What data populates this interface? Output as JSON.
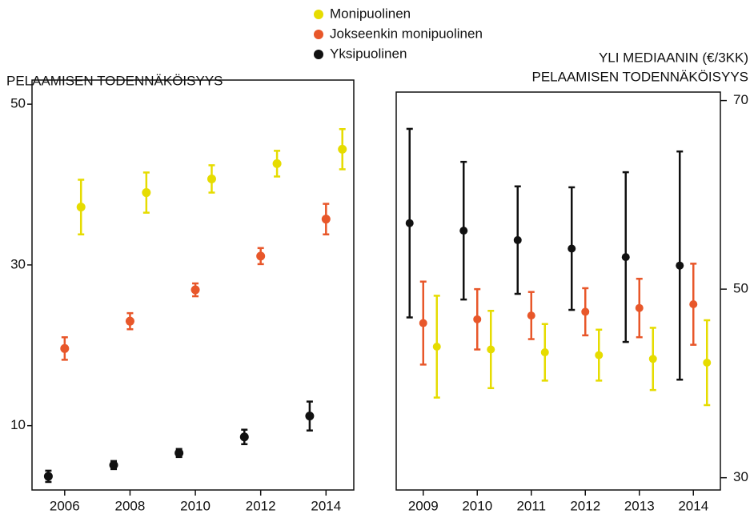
{
  "chart_data": [
    {
      "type": "errorbar-scatter",
      "ylabel": "PELAAMISEN TODENNÄKÖISYYS",
      "xlim": [
        2005,
        2014.85
      ],
      "xticks": [
        2006,
        2008,
        2010,
        2012,
        2014
      ],
      "ylim": [
        2,
        53
      ],
      "yticks": [
        10,
        30,
        50
      ],
      "y_axis_side": "left",
      "series": [
        {
          "name": "Monipuolinen",
          "color": "#e6dc00",
          "x": [
            2006.5,
            2008.5,
            2010.5,
            2012.5,
            2014.5
          ],
          "values": [
            37.2,
            39.0,
            40.7,
            42.6,
            44.4
          ],
          "errors": [
            3.4,
            2.5,
            1.7,
            1.6,
            2.5
          ]
        },
        {
          "name": "Jokseenkin monipuolinen",
          "color": "#e8572a",
          "x": [
            2006,
            2008,
            2010,
            2012,
            2014
          ],
          "values": [
            19.6,
            23.0,
            26.9,
            31.1,
            35.7
          ],
          "errors": [
            1.4,
            1.0,
            0.8,
            1.0,
            1.9
          ]
        },
        {
          "name": "Yksipuolinen",
          "color": "#111111",
          "x": [
            2005.5,
            2007.5,
            2009.5,
            2011.5,
            2013.5
          ],
          "values": [
            3.7,
            5.1,
            6.6,
            8.6,
            11.2
          ],
          "errors": [
            0.7,
            0.5,
            0.5,
            0.9,
            1.8
          ]
        }
      ]
    },
    {
      "type": "errorbar-category",
      "ylabel": [
        "YLI MEDIAANIN (€/3KK)",
        "PELAAMISEN TODENNÄKÖISYYS"
      ],
      "categories": [
        "2009",
        "2010",
        "2011",
        "2012",
        "2013",
        "2014"
      ],
      "ylim": [
        28.7,
        70.9
      ],
      "yticks": [
        30,
        50,
        70
      ],
      "y_axis_side": "right",
      "series": [
        {
          "name": "Yksipuolinen",
          "color": "#111111",
          "values": [
            57.0,
            56.2,
            55.2,
            54.3,
            53.4,
            52.5
          ],
          "errors": [
            10.0,
            7.3,
            5.7,
            6.5,
            9.0,
            12.1
          ]
        },
        {
          "name": "Jokseenkin monipuolinen",
          "color": "#e8572a",
          "values": [
            46.4,
            46.8,
            47.2,
            47.6,
            48.0,
            48.4
          ],
          "errors": [
            4.4,
            3.2,
            2.5,
            2.5,
            3.1,
            4.3
          ]
        },
        {
          "name": "Monipuolinen",
          "color": "#e6dc00",
          "values": [
            43.9,
            43.6,
            43.3,
            43.0,
            42.6,
            42.2
          ],
          "errors": [
            5.4,
            4.1,
            3.0,
            2.7,
            3.3,
            4.5
          ]
        }
      ]
    }
  ]
}
